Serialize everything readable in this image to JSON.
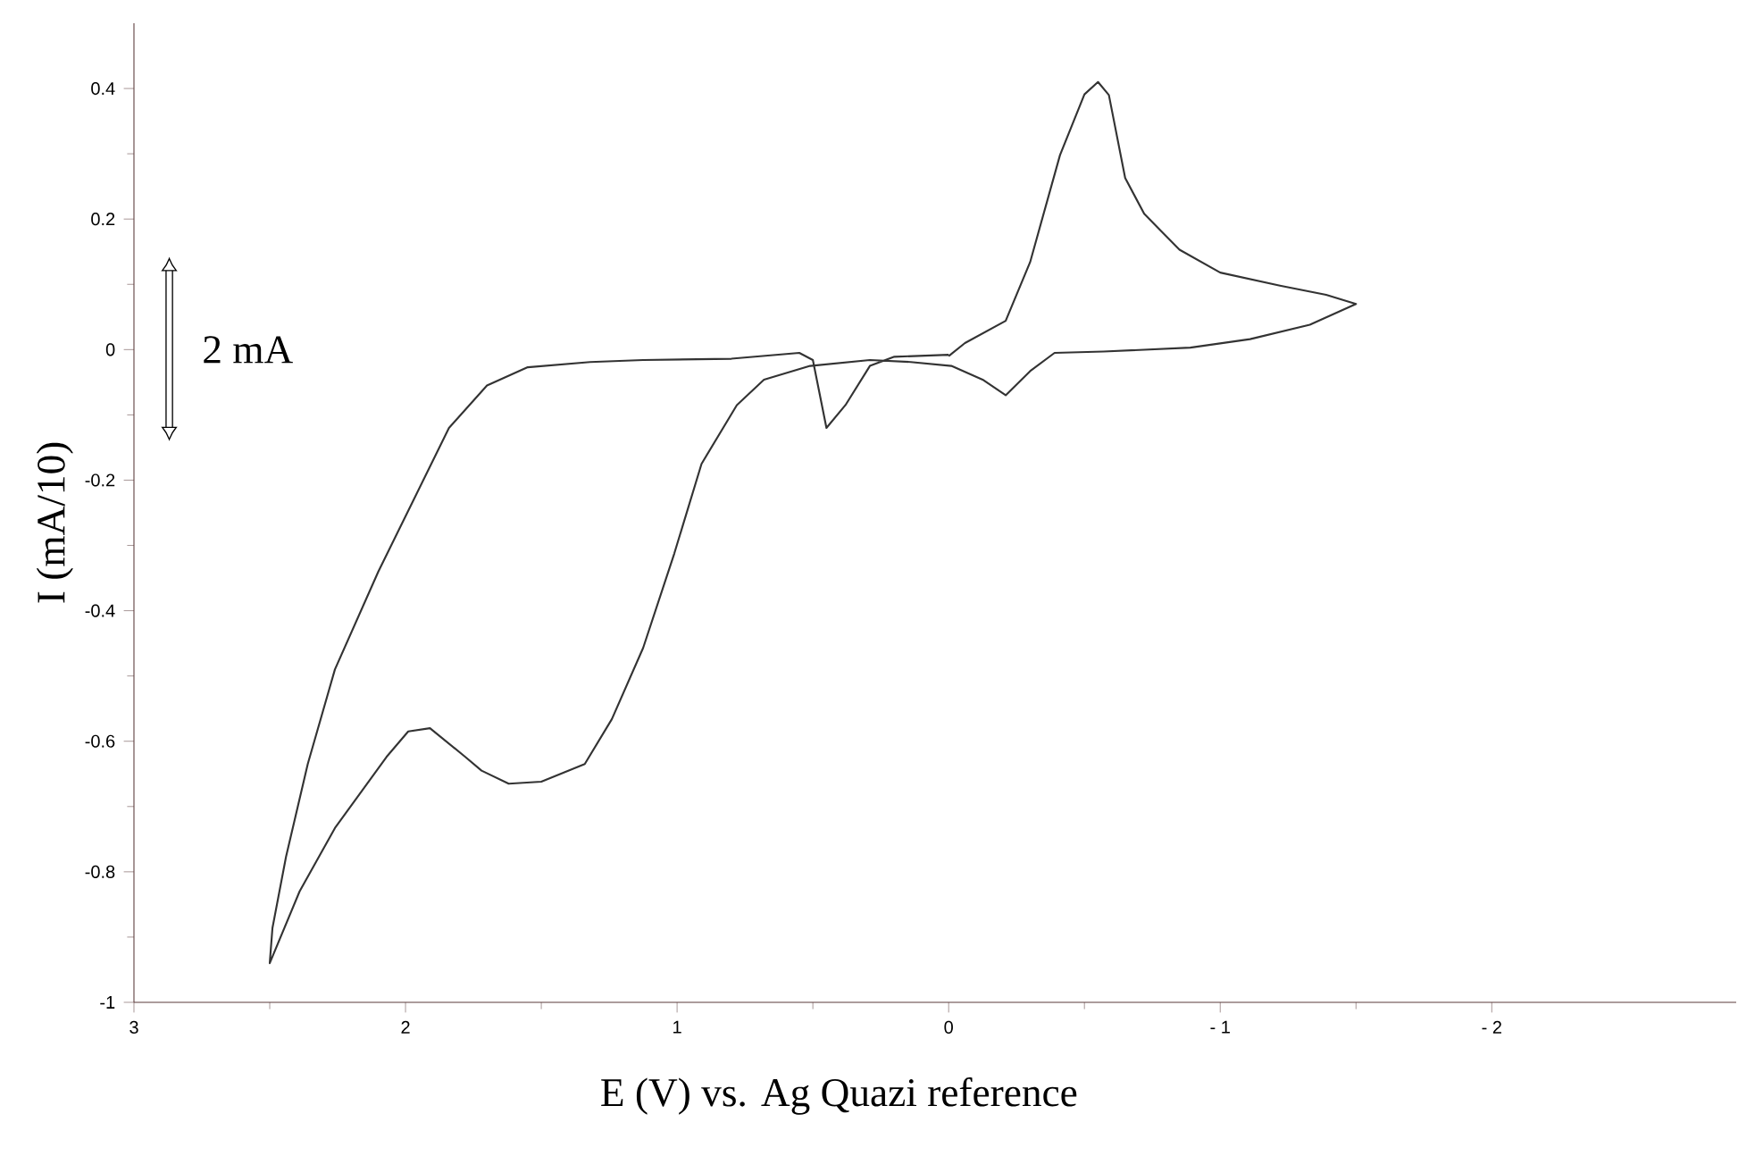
{
  "chart_data": {
    "type": "line",
    "xlabel": "E (V) vs. Ag Quazi reference",
    "ylabel": "I (mA/10)",
    "annotations": [
      "2 mA"
    ],
    "series": [
      {
        "color": "#333333",
        "x": [
          0.0,
          -0.06,
          -0.21,
          -0.3,
          -0.41,
          -0.5,
          -0.55,
          -0.59,
          -0.65,
          -0.72,
          -0.85,
          -1.0,
          -1.22,
          -1.39,
          -1.5,
          -1.33,
          -1.11,
          -0.89,
          -0.57,
          -0.39,
          -0.3,
          -0.21,
          -0.125,
          -0.01,
          0.14,
          0.29,
          0.51,
          0.68,
          0.78,
          0.91,
          1.01,
          1.125,
          1.24,
          1.34,
          1.5,
          1.62,
          1.72,
          1.78,
          1.91,
          1.99,
          2.07,
          2.26,
          2.39,
          2.5,
          2.49,
          2.44,
          2.36,
          2.26,
          2.1,
          1.97,
          1.84,
          1.7,
          1.55,
          1.32,
          1.125,
          0.8,
          0.55,
          0.5,
          0.45,
          0.38,
          0.29,
          0.2,
          0.0
        ],
        "values": [
          -0.01,
          0.01,
          0.044,
          0.134,
          0.298,
          0.391,
          0.41,
          0.39,
          0.263,
          0.208,
          0.153,
          0.118,
          0.098,
          0.084,
          0.07,
          0.038,
          0.016,
          0.003,
          -0.003,
          -0.005,
          -0.033,
          -0.07,
          -0.046,
          -0.025,
          -0.019,
          -0.016,
          -0.025,
          -0.046,
          -0.085,
          -0.175,
          -0.312,
          -0.457,
          -0.566,
          -0.635,
          -0.662,
          -0.665,
          -0.645,
          -0.624,
          -0.58,
          -0.585,
          -0.624,
          -0.733,
          -0.83,
          -0.94,
          -0.886,
          -0.777,
          -0.635,
          -0.49,
          -0.34,
          -0.23,
          -0.12,
          -0.055,
          -0.027,
          -0.019,
          -0.016,
          -0.014,
          -0.005,
          -0.016,
          -0.12,
          -0.085,
          -0.025,
          -0.011,
          -0.008
        ]
      }
    ],
    "xlim": [
      3,
      -2.9
    ],
    "ylim": [
      -1,
      0.5
    ],
    "xticks": [
      3,
      2,
      1,
      0,
      {
        "value": -1,
        "label": "- 1"
      },
      {
        "value": -2,
        "label": "- 2"
      }
    ],
    "yticks": [
      0.4,
      0.2,
      0,
      -0.2,
      -0.4,
      -0.6,
      -0.8,
      -1
    ],
    "grid": false,
    "marker": "none",
    "line_style": "solid"
  }
}
